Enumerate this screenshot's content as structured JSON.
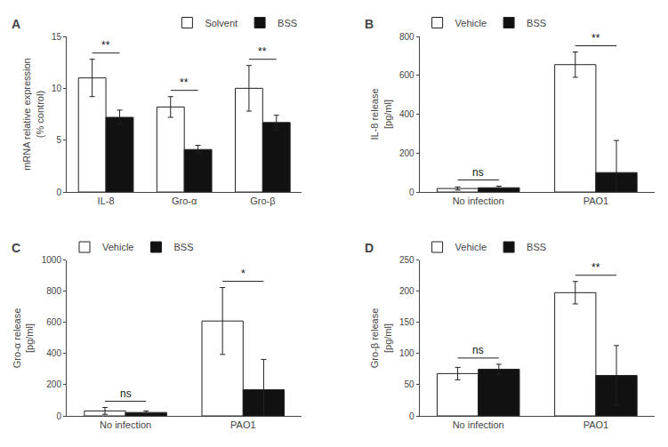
{
  "chart_data": [
    {
      "type": "bar",
      "title": "A",
      "categories": [
        "IL-8",
        "Gro-α",
        "Gro-β"
      ],
      "series": [
        {
          "name": "Solvent",
          "color": "#ffffff",
          "values": [
            11.0,
            8.2,
            10.0
          ],
          "errors": [
            1.8,
            1.0,
            2.2
          ]
        },
        {
          "name": "BSS",
          "color": "#111111",
          "values": [
            7.2,
            4.1,
            6.7
          ],
          "errors": [
            0.7,
            0.4,
            0.7
          ]
        }
      ],
      "ylabel": "mRNA relative expression\n(% control)",
      "ylim": [
        0,
        15
      ],
      "yticks": [
        0,
        5,
        10,
        15
      ],
      "annotations": [
        {
          "category": "IL-8",
          "text": "**"
        },
        {
          "category": "Gro-α",
          "text": "**"
        },
        {
          "category": "Gro-β",
          "text": "**"
        }
      ],
      "legend": "upper right",
      "grid": false
    },
    {
      "type": "bar",
      "title": "B",
      "categories": [
        "No infection",
        "PAO1"
      ],
      "series": [
        {
          "name": "Vehicle",
          "color": "#ffffff",
          "values": [
            18,
            655
          ],
          "errors": [
            8,
            65
          ]
        },
        {
          "name": "BSS",
          "color": "#111111",
          "values": [
            22,
            100
          ],
          "errors": [
            8,
            165
          ]
        }
      ],
      "ylabel": "IL-8 release\n[pg/ml]",
      "ylim": [
        0,
        800
      ],
      "yticks": [
        0,
        200,
        400,
        600,
        800
      ],
      "annotations": [
        {
          "category": "No infection",
          "text": "ns"
        },
        {
          "category": "PAO1",
          "text": "**"
        }
      ],
      "legend": "upper left",
      "grid": false
    },
    {
      "type": "bar",
      "title": "C",
      "categories": [
        "No infection",
        "PAO1"
      ],
      "series": [
        {
          "name": "Vehicle",
          "color": "#ffffff",
          "values": [
            32,
            610
          ],
          "errors": [
            22,
            215
          ]
        },
        {
          "name": "BSS",
          "color": "#111111",
          "values": [
            22,
            168
          ],
          "errors": [
            10,
            195
          ]
        }
      ],
      "ylabel": "Gro-α release\n[pg/ml]",
      "ylim": [
        0,
        1000
      ],
      "yticks": [
        0,
        200,
        400,
        600,
        800,
        1000
      ],
      "annotations": [
        {
          "category": "No infection",
          "text": "ns"
        },
        {
          "category": "PAO1",
          "text": "*"
        }
      ],
      "legend": "upper left",
      "grid": false
    },
    {
      "type": "bar",
      "title": "D",
      "categories": [
        "No infection",
        "PAO1"
      ],
      "series": [
        {
          "name": "Vehicle",
          "color": "#ffffff",
          "values": [
            68,
            198
          ],
          "errors": [
            10,
            18
          ]
        },
        {
          "name": "BSS",
          "color": "#111111",
          "values": [
            75,
            65
          ],
          "errors": [
            8,
            48
          ]
        }
      ],
      "ylabel": "Gro-β release\n[pg/ml]",
      "ylim": [
        0,
        250
      ],
      "yticks": [
        0,
        50,
        100,
        150,
        200,
        250
      ],
      "annotations": [
        {
          "category": "No infection",
          "text": "ns"
        },
        {
          "category": "PAO1",
          "text": "**"
        }
      ],
      "legend": "upper left",
      "grid": false
    }
  ]
}
